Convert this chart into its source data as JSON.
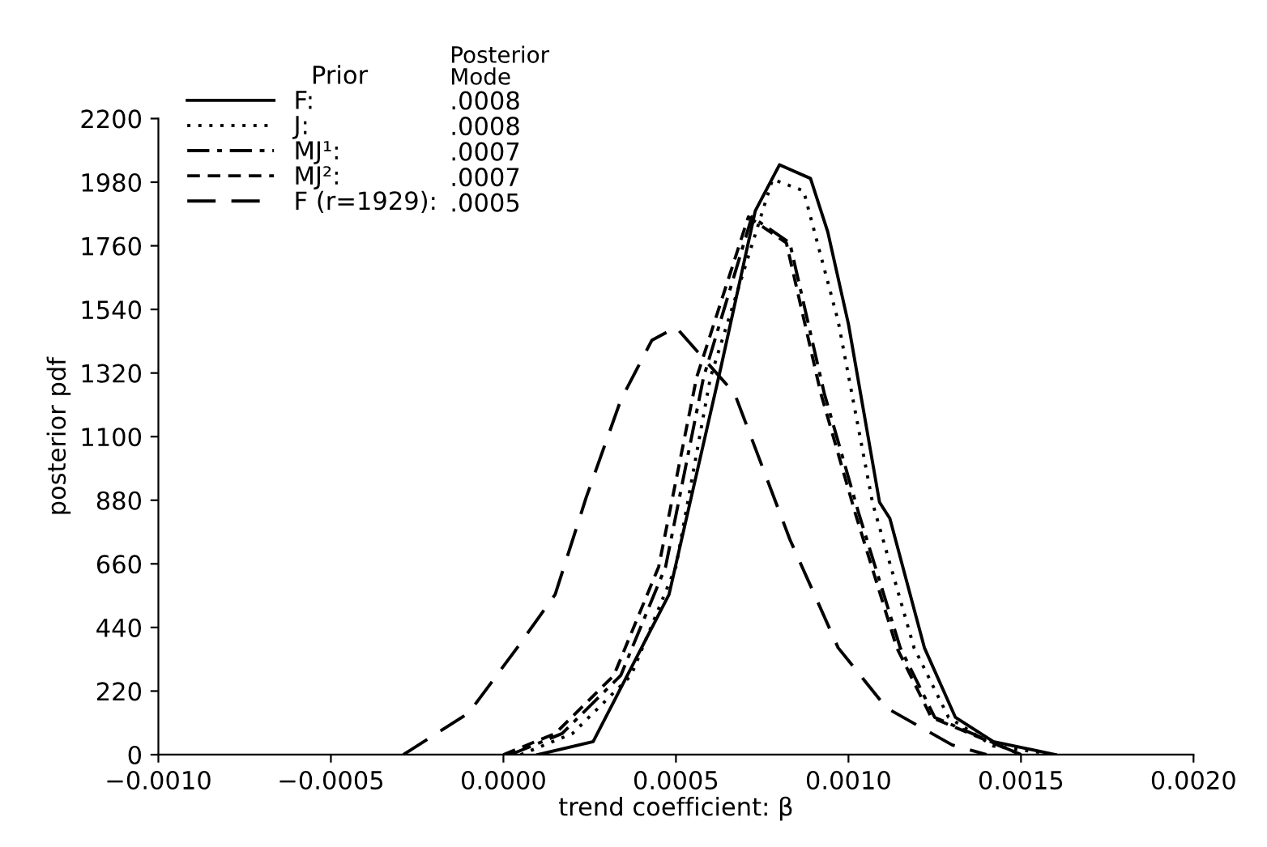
{
  "chart_data": {
    "type": "line",
    "xlabel": "trend coefficient: β",
    "ylabel": "posterior pdf",
    "legend_title": "Prior",
    "xlim": [
      -0.001,
      0.002
    ],
    "ylim": [
      0,
      2200
    ],
    "xticks": [
      {
        "value": -0.001,
        "label": "−0.0010"
      },
      {
        "value": -0.0005,
        "label": "−0.0005"
      },
      {
        "value": 0.0,
        "label": "0.0000"
      },
      {
        "value": 0.0005,
        "label": "0.0005"
      },
      {
        "value": 0.001,
        "label": "0.0010"
      },
      {
        "value": 0.0015,
        "label": "0.0015"
      },
      {
        "value": 0.002,
        "label": "0.0020"
      }
    ],
    "yticks": [
      0,
      220,
      440,
      660,
      880,
      1100,
      1320,
      1540,
      1760,
      1980,
      2200
    ],
    "grid": false,
    "legend": "top left",
    "annotations": [
      "Posterior\nMode",
      ".0008",
      ".0008",
      ".0007",
      ".0007",
      ".0005"
    ],
    "series": [
      {
        "name": "F:",
        "color": "#000000",
        "line_style": "solid",
        "x": [
          0.0001,
          0.00026,
          0.00048,
          0.00063,
          0.00073,
          0.0008,
          0.00089,
          0.00094,
          0.001,
          0.00109,
          0.00112,
          0.00122,
          0.00131,
          0.00142,
          0.0016
        ],
        "values": [
          0,
          45,
          554,
          1338,
          1881,
          2040,
          1993,
          1808,
          1489,
          873,
          817,
          370,
          129,
          45,
          0
        ]
      },
      {
        "name": "J:",
        "color": "#000000",
        "line_style": "dotted",
        "x": [
          5e-05,
          0.0002,
          0.00037,
          0.0005,
          0.0006,
          0.00078,
          0.00087,
          0.00097,
          0.00107,
          0.00119,
          0.00129,
          0.00142,
          0.0016
        ],
        "values": [
          0,
          73,
          274,
          650,
          1305,
          1990,
          1950,
          1500,
          870,
          370,
          129,
          30,
          0
        ]
      },
      {
        "name": "MJ¹:",
        "color": "#000000",
        "line_style": "dashdot",
        "x": [
          2e-05,
          0.00017,
          0.00034,
          0.00047,
          0.00058,
          0.00072,
          0.00083,
          0.00093,
          0.00103,
          0.00115,
          0.00125,
          0.0015
        ],
        "values": [
          0,
          73,
          274,
          650,
          1305,
          1860,
          1770,
          1249,
          834,
          370,
          129,
          0
        ]
      },
      {
        "name": "MJ²:",
        "color": "#000000",
        "line_style": "dashed",
        "x": [
          0.0,
          0.00015,
          0.00032,
          0.00045,
          0.00056,
          0.00071,
          0.00082,
          0.00092,
          0.00102,
          0.00114,
          0.00124,
          0.0015
        ],
        "values": [
          0,
          73,
          274,
          650,
          1305,
          1860,
          1770,
          1249,
          834,
          370,
          129,
          0
        ]
      },
      {
        "name": "F (r=1929):",
        "color": "#000000",
        "line_style": "longdash",
        "x": [
          -0.00029,
          -0.0001,
          4e-05,
          0.00015,
          0.00024,
          0.00034,
          0.00043,
          0.0005,
          0.00067,
          0.00083,
          0.00097,
          0.00111,
          0.0013,
          0.0014
        ],
        "values": [
          0,
          145,
          370,
          554,
          890,
          1226,
          1433,
          1478,
          1249,
          745,
          370,
          162,
          34,
          0
        ]
      }
    ]
  }
}
